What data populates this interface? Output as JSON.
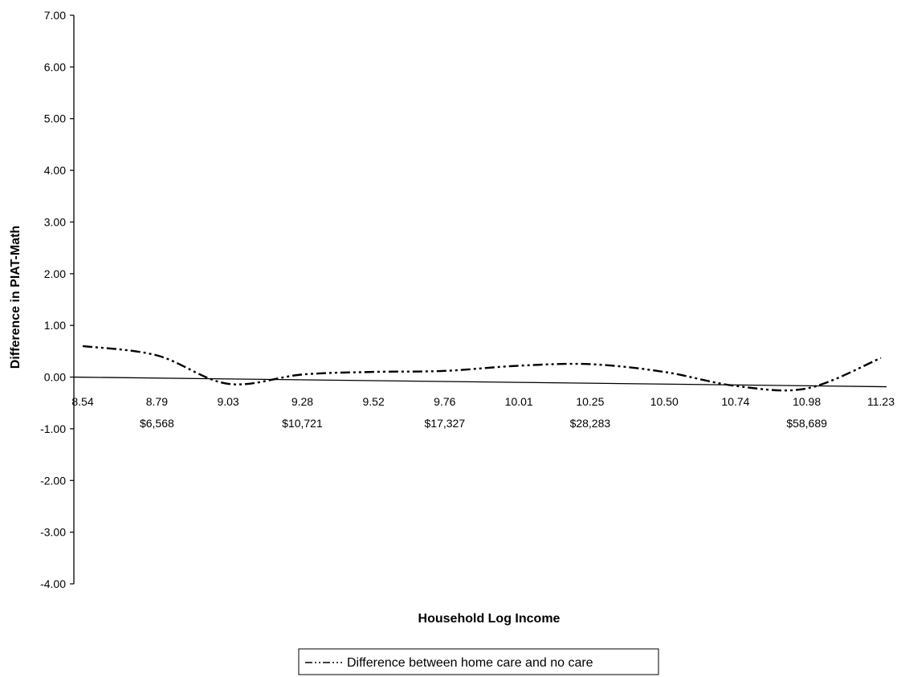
{
  "chart_data": {
    "type": "line",
    "title": "",
    "xlabel": "Household Log Income",
    "ylabel": "Difference in PIAT-Math",
    "ylim": [
      -4,
      7
    ],
    "y_ticks": [
      "7.00",
      "6.00",
      "5.00",
      "4.00",
      "3.00",
      "2.00",
      "1.00",
      "0.00",
      "-1.00",
      "-2.00",
      "-3.00",
      "-4.00"
    ],
    "x_ticks": [
      "8.54",
      "8.79",
      "9.03",
      "9.28",
      "9.52",
      "9.76",
      "10.01",
      "10.25",
      "10.50",
      "10.74",
      "10.98",
      "11.23"
    ],
    "x_dollar_labels": [
      "",
      "$6,568",
      "",
      "$10,721",
      "",
      "$17,327",
      "",
      "$28,283",
      "",
      "",
      "$58,689",
      ""
    ],
    "series": [
      {
        "name": "Difference between home care and no care",
        "line_style": "dash-dot-dot",
        "color": "#000000",
        "x": [
          8.54,
          8.79,
          9.03,
          9.28,
          9.52,
          9.76,
          10.01,
          10.25,
          10.5,
          10.74,
          10.98,
          11.23
        ],
        "values": [
          0.6,
          0.42,
          -0.13,
          0.05,
          0.1,
          0.12,
          0.22,
          0.25,
          0.1,
          -0.17,
          -0.22,
          0.37
        ]
      }
    ],
    "grid": false,
    "legend_position": "bottom"
  }
}
